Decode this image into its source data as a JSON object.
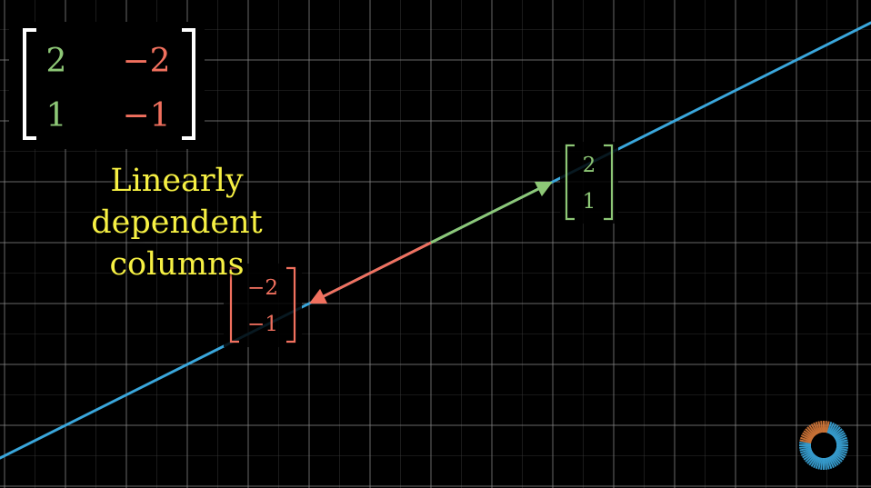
{
  "matrix": {
    "rows": [
      [
        "2",
        "−2"
      ],
      [
        "1",
        "−1"
      ]
    ],
    "col1_color": "#8dc776",
    "col2_color": "#f1705e"
  },
  "caption": {
    "line1": "Linearly dependent",
    "line2": "columns",
    "color": "#f6f043"
  },
  "vector_a": {
    "x": 2,
    "y": 1,
    "label_top": "2",
    "label_bottom": "1",
    "color": "#8dc776"
  },
  "vector_b": {
    "x": -2,
    "y": -1,
    "label_top": "−2",
    "label_bottom": "−1",
    "color": "#f1705e"
  },
  "span_line": {
    "color": "#3aa7dc",
    "slope": 0.5
  },
  "colors": {
    "background": "#000000",
    "grid": "#8a8a8a",
    "loader": "#3aa7dc"
  },
  "icons": {
    "loader": "loading-spinner-icon"
  }
}
